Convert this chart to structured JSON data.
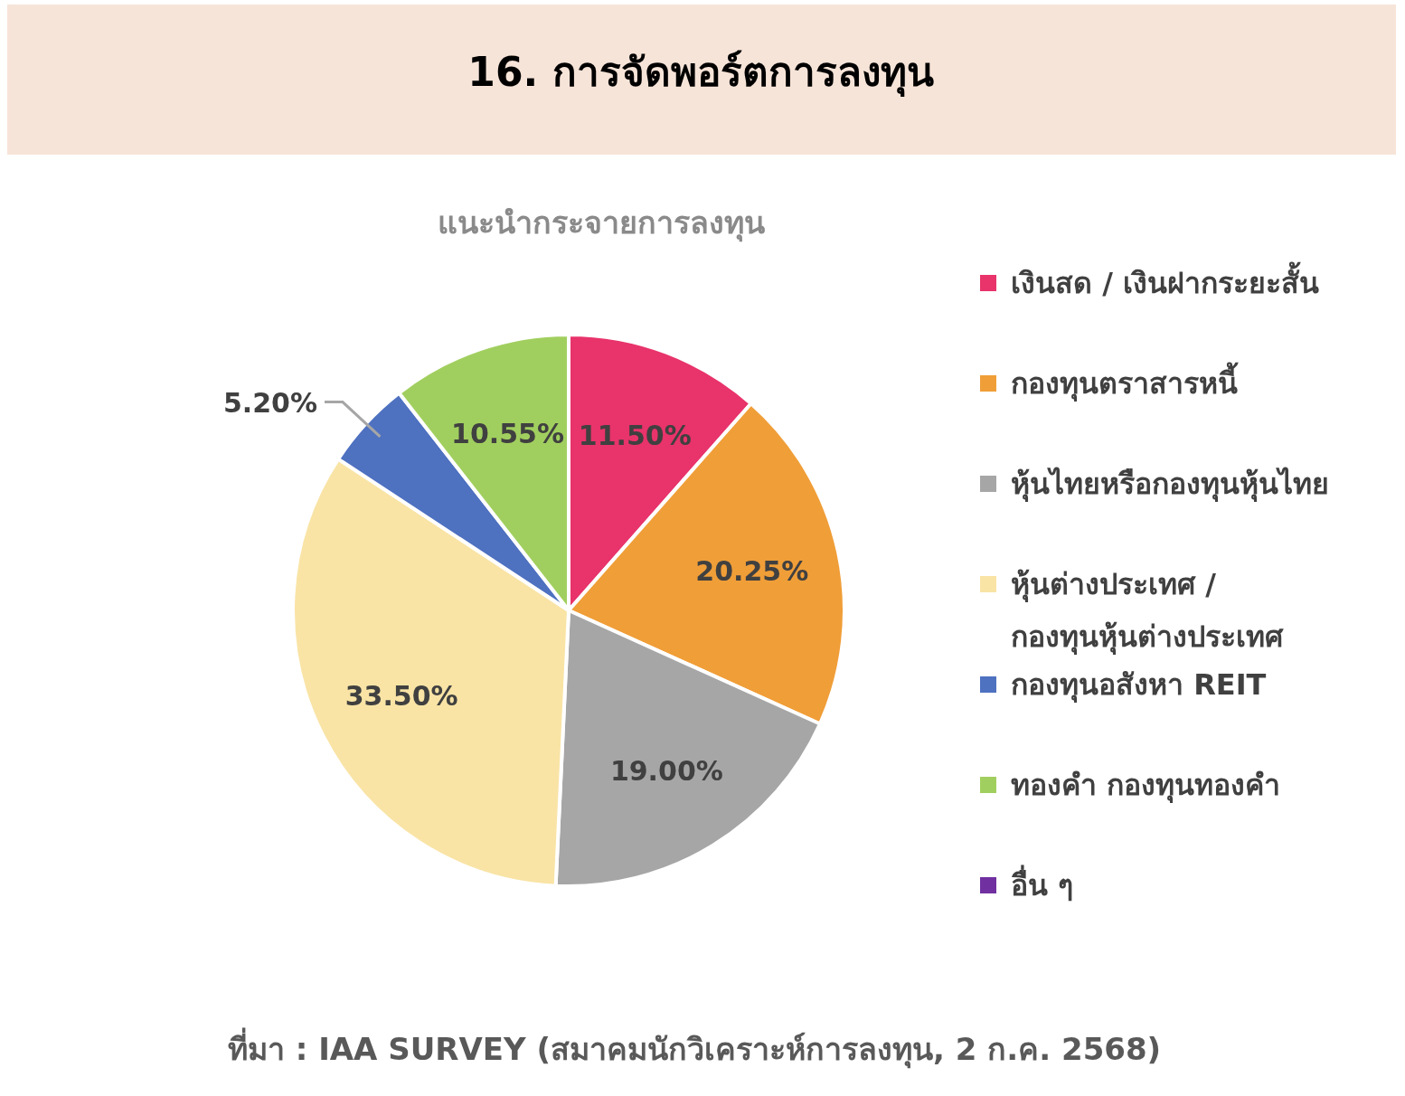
{
  "chart_data": {
    "type": "pie",
    "title": "16. การจัดพอร์ตการลงทุน",
    "subtitle": "แนะนำกระจายการลงทุน",
    "categories": [
      "เงินสด / เงินฝากระยะสั้น",
      "กองทุนตราสารหนี้",
      "หุ้นไทยหรือกองทุนหุ้นไทย",
      "หุ้นต่างประเทศ / กองทุนหุ้นต่างประเทศ",
      "กองทุนอสังหา REIT",
      "ทองคำ กองทุนทองคำ",
      "อื่น ๆ"
    ],
    "values": [
      11.5,
      20.25,
      19.0,
      33.5,
      5.2,
      10.55,
      0
    ],
    "value_labels": [
      "11.50%",
      "20.25%",
      "19.00%",
      "33.50%",
      "5.20%",
      "10.55%",
      null
    ],
    "colors": [
      "#e8336b",
      "#f09e38",
      "#a6a6a6",
      "#f9e4a6",
      "#4e71c0",
      "#a1cf5f",
      "#7030a0"
    ],
    "legend": "right",
    "annotations": [
      "ที่มา : IAA SURVEY (สมาคมนักวิเคราะห์การลงทุน, 2 ก.ค. 2568)"
    ]
  }
}
